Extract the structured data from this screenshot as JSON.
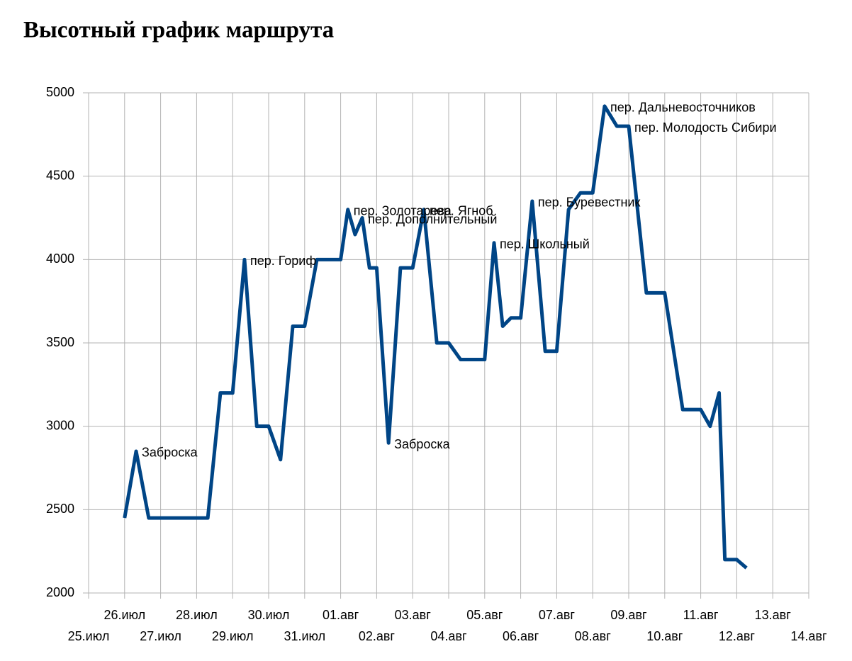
{
  "chart_data": {
    "type": "line",
    "title": "Высотный график маршрута",
    "xlim": [
      0,
      20
    ],
    "xticks": [
      {
        "value": 0,
        "label": "25.июл"
      },
      {
        "value": 1,
        "label": "26.июл"
      },
      {
        "value": 2,
        "label": "27.июл"
      },
      {
        "value": 3,
        "label": "28.июл"
      },
      {
        "value": 4,
        "label": "29.июл"
      },
      {
        "value": 5,
        "label": "30.июл"
      },
      {
        "value": 6,
        "label": "31.июл"
      },
      {
        "value": 7,
        "label": "01.авг"
      },
      {
        "value": 8,
        "label": "02.авг"
      },
      {
        "value": 9,
        "label": "03.авг"
      },
      {
        "value": 10,
        "label": "04.авг"
      },
      {
        "value": 11,
        "label": "05.авг"
      },
      {
        "value": 12,
        "label": "06.авг"
      },
      {
        "value": 13,
        "label": "07.авг"
      },
      {
        "value": 14,
        "label": "08.авг"
      },
      {
        "value": 15,
        "label": "09.авг"
      },
      {
        "value": 16,
        "label": "10.авг"
      },
      {
        "value": 17,
        "label": "11.авг"
      },
      {
        "value": 18,
        "label": "12.авг"
      },
      {
        "value": 19,
        "label": "13.авг"
      },
      {
        "value": 20,
        "label": "14.авг"
      }
    ],
    "ylim": [
      2000,
      5000
    ],
    "yticks": [
      2000,
      2500,
      3000,
      3500,
      4000,
      4500,
      5000
    ],
    "grid": true,
    "x": [
      1.0,
      1.32,
      1.67,
      3.31,
      3.66,
      4.0,
      4.33,
      4.67,
      5.0,
      5.33,
      5.67,
      6.0,
      6.34,
      7.0,
      7.2,
      7.4,
      7.6,
      7.8,
      8.0,
      8.33,
      8.66,
      9.0,
      9.31,
      9.67,
      10.0,
      10.33,
      11.0,
      11.26,
      11.5,
      11.73,
      12.0,
      12.32,
      12.68,
      13.0,
      13.33,
      13.66,
      14.0,
      14.33,
      14.67,
      15.0,
      15.49,
      16.0,
      16.5,
      17.0,
      17.26,
      17.51,
      17.67,
      18.0,
      18.27
    ],
    "series": [
      {
        "color": "#004586",
        "values": [
          2450,
          2850,
          2450,
          2450,
          3200,
          3200,
          4000,
          3000,
          3000,
          2800,
          3600,
          3600,
          4000,
          4000,
          4300,
          4150,
          4250,
          3950,
          3950,
          2900,
          3950,
          3950,
          4300,
          3500,
          3500,
          3400,
          3400,
          4100,
          3600,
          3650,
          3650,
          4350,
          3450,
          3450,
          4300,
          4400,
          4400,
          4920,
          4800,
          4800,
          3800,
          3800,
          3100,
          3100,
          3000,
          3200,
          2200,
          2200,
          2150
        ],
        "point_labels": [
          null,
          "Заброска",
          null,
          null,
          null,
          null,
          "пер. Гориф",
          null,
          null,
          null,
          null,
          null,
          null,
          null,
          "пер. Золотарева",
          null,
          "пер. Дополнительный",
          null,
          null,
          "Заброска",
          null,
          null,
          "пер. Ягноб",
          null,
          null,
          null,
          null,
          "пер. Школьный",
          null,
          null,
          null,
          "пер. Буревестник",
          null,
          null,
          null,
          null,
          null,
          "пер. Дальневосточников",
          null,
          "пер. Молодость Сибири",
          null,
          null,
          null,
          null,
          null,
          null,
          null,
          null,
          null
        ]
      }
    ]
  }
}
